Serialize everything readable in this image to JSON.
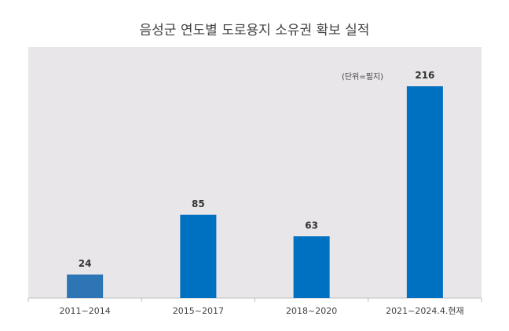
{
  "chart_data": {
    "type": "bar",
    "title": "음성군 연도별 도로용지 소유권 확보 실적",
    "unit_label": "(단위=필지)",
    "categories": [
      "2011~2014",
      "2015~2017",
      "2018~2020",
      "2021~2024.4.현재"
    ],
    "values": [
      24,
      85,
      63,
      216
    ],
    "xlabel": "",
    "ylabel": "",
    "ylim": [
      0,
      240
    ],
    "grid": false,
    "legend": "none",
    "colors": {
      "plot_background": "#e8e6e8",
      "bars": [
        "#2e75b6",
        "#0070c0",
        "#0070c0",
        "#0070c0"
      ],
      "axis": "#bfbfbf"
    }
  }
}
